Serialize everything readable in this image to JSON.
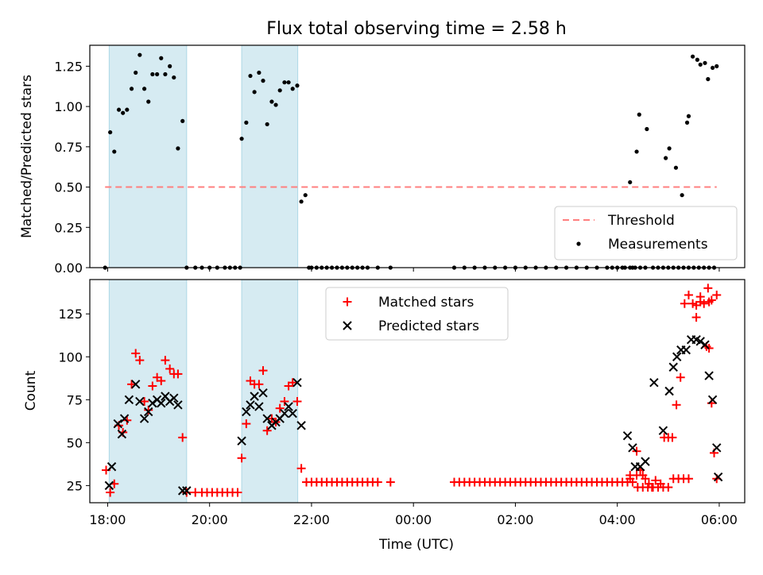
{
  "title": "Flux total observing time = 2.58 h",
  "colors": {
    "band": "#add8e6",
    "threshold": "#ff7f7f",
    "matched": "#ff0000",
    "predicted": "#000000",
    "points": "#000000"
  },
  "chart_data": [
    {
      "type": "scatter",
      "panel": "top",
      "ylabel": "Matched/Predicted stars",
      "xlim": [
        17.65,
        30.5
      ],
      "ylim": [
        0,
        1.38
      ],
      "yticks": [
        0.0,
        0.25,
        0.5,
        0.75,
        1.0,
        1.25
      ],
      "ytick_labels": [
        "0.00",
        "0.25",
        "0.50",
        "0.75",
        "1.00",
        "1.25"
      ],
      "shaded_intervals": [
        [
          18.03,
          19.55
        ],
        [
          20.63,
          21.73
        ]
      ],
      "threshold": {
        "label": "Threshold",
        "value": 0.5,
        "x_range": [
          17.95,
          29.95
        ]
      },
      "legend": {
        "position": "lower right",
        "entries": [
          "Threshold",
          "Measurements"
        ]
      },
      "series": [
        {
          "name": "Measurements",
          "x": [
            17.95,
            18.05,
            18.13,
            18.22,
            18.3,
            18.38,
            18.47,
            18.55,
            18.63,
            18.72,
            18.8,
            18.88,
            18.97,
            19.05,
            19.13,
            19.22,
            19.3,
            19.38,
            19.47,
            19.55,
            19.72,
            19.85,
            20.0,
            20.15,
            20.3,
            20.4,
            20.5,
            20.6,
            20.63,
            20.72,
            20.8,
            20.88,
            20.97,
            21.05,
            21.13,
            21.22,
            21.3,
            21.38,
            21.47,
            21.55,
            21.63,
            21.72,
            21.8,
            21.88,
            21.95,
            22.0,
            22.1,
            22.2,
            22.3,
            22.4,
            22.5,
            22.6,
            22.7,
            22.8,
            22.9,
            23.0,
            23.1,
            23.3,
            23.55,
            24.8,
            25.0,
            25.2,
            25.4,
            25.6,
            25.8,
            26.0,
            26.2,
            26.4,
            26.6,
            26.8,
            27.0,
            27.2,
            27.4,
            27.6,
            27.8,
            27.9,
            28.0,
            28.1,
            28.15,
            28.25,
            28.3,
            28.35,
            28.45,
            28.55,
            28.7,
            28.8,
            28.9,
            29.0,
            29.1,
            29.2,
            29.3,
            29.4,
            29.5,
            29.6,
            29.7,
            29.8,
            29.9,
            28.25,
            28.38,
            28.43,
            28.58,
            28.95,
            29.02,
            29.15,
            29.27,
            29.37,
            29.4,
            29.48,
            29.57,
            29.63,
            29.72,
            29.78,
            29.87,
            29.95
          ],
          "y": [
            0.0,
            0.84,
            0.72,
            0.98,
            0.96,
            0.98,
            1.11,
            1.21,
            1.32,
            1.11,
            1.03,
            1.2,
            1.2,
            1.3,
            1.2,
            1.25,
            1.18,
            0.74,
            0.91,
            0.0,
            0.0,
            0.0,
            0.0,
            0.0,
            0.0,
            0.0,
            0.0,
            0.0,
            0.8,
            0.9,
            1.19,
            1.09,
            1.21,
            1.16,
            0.89,
            1.03,
            1.01,
            1.1,
            1.15,
            1.15,
            1.11,
            1.13,
            0.41,
            0.45,
            0.0,
            0.0,
            0.0,
            0.0,
            0.0,
            0.0,
            0.0,
            0.0,
            0.0,
            0.0,
            0.0,
            0.0,
            0.0,
            0.0,
            0.0,
            0.0,
            0.0,
            0.0,
            0.0,
            0.0,
            0.0,
            0.0,
            0.0,
            0.0,
            0.0,
            0.0,
            0.0,
            0.0,
            0.0,
            0.0,
            0.0,
            0.0,
            0.0,
            0.0,
            0.0,
            0.0,
            0.0,
            0.0,
            0.0,
            0.0,
            0.0,
            0.0,
            0.0,
            0.0,
            0.0,
            0.0,
            0.0,
            0.0,
            0.0,
            0.0,
            0.0,
            0.0,
            0.0,
            0.53,
            0.72,
            0.95,
            0.86,
            0.68,
            0.74,
            0.62,
            0.45,
            0.9,
            0.94,
            1.31,
            1.29,
            1.26,
            1.27,
            1.17,
            1.24,
            1.25
          ]
        }
      ]
    },
    {
      "type": "scatter",
      "panel": "bottom",
      "ylabel": "Count",
      "xlabel": "Time (UTC)",
      "xlim": [
        17.65,
        30.5
      ],
      "ylim": [
        15,
        145
      ],
      "yticks": [
        25,
        50,
        75,
        100,
        125
      ],
      "ytick_labels": [
        "25",
        "50",
        "75",
        "100",
        "125"
      ],
      "xticks": [
        18,
        20,
        22,
        24,
        26,
        28,
        30
      ],
      "xtick_labels": [
        "18:00",
        "20:00",
        "22:00",
        "00:00",
        "02:00",
        "04:00",
        "06:00"
      ],
      "shaded_intervals": [
        [
          18.03,
          19.55
        ],
        [
          20.63,
          21.73
        ]
      ],
      "legend": {
        "position": "upper center",
        "entries": [
          "Matched stars",
          "Predicted stars"
        ]
      },
      "series": [
        {
          "name": "Matched stars",
          "x": [
            17.97,
            18.05,
            18.13,
            18.22,
            18.3,
            18.38,
            18.47,
            18.55,
            18.63,
            18.72,
            18.8,
            18.88,
            18.97,
            19.05,
            19.13,
            19.22,
            19.3,
            19.38,
            19.47,
            19.55,
            19.72,
            19.85,
            19.95,
            20.05,
            20.15,
            20.25,
            20.35,
            20.45,
            20.55,
            20.63,
            20.72,
            20.8,
            20.88,
            20.97,
            21.05,
            21.13,
            21.22,
            21.3,
            21.38,
            21.47,
            21.55,
            21.63,
            21.72,
            21.8,
            21.9,
            22.0,
            22.1,
            22.2,
            22.3,
            22.4,
            22.5,
            22.6,
            22.7,
            22.8,
            22.9,
            23.0,
            23.1,
            23.2,
            23.3,
            23.55,
            24.8,
            24.9,
            25.0,
            25.1,
            25.2,
            25.3,
            25.4,
            25.5,
            25.6,
            25.7,
            25.8,
            25.9,
            26.0,
            26.1,
            26.2,
            26.3,
            26.4,
            26.5,
            26.6,
            26.7,
            26.8,
            26.9,
            27.0,
            27.1,
            27.2,
            27.3,
            27.4,
            27.5,
            27.6,
            27.7,
            27.8,
            27.9,
            28.0,
            28.1,
            28.2,
            28.3,
            28.4,
            28.5,
            28.6,
            28.7,
            28.8,
            28.9,
            29.0,
            29.1,
            29.2,
            29.3,
            29.4,
            29.48,
            29.55,
            29.63,
            29.7,
            29.78,
            29.85,
            29.95,
            28.75,
            28.85,
            28.92,
            29.0,
            29.08,
            29.16,
            29.24,
            29.32,
            29.4
          ],
          "y": [
            34,
            21,
            26,
            60,
            56,
            63,
            84,
            102,
            98,
            74,
            69,
            83,
            88,
            86,
            98,
            93,
            90,
            90,
            53,
            21,
            21,
            21,
            21,
            21,
            21,
            21,
            21,
            21,
            21,
            41,
            61,
            86,
            84,
            84,
            92,
            57,
            64,
            62,
            70,
            74,
            83,
            85,
            74,
            35,
            27,
            27,
            27,
            27,
            27,
            27,
            27,
            27,
            27,
            27,
            27,
            27,
            27,
            27,
            27,
            27,
            27,
            27,
            27,
            27,
            27,
            27,
            27,
            27,
            27,
            27,
            27,
            27,
            27,
            27,
            27,
            27,
            27,
            27,
            27,
            27,
            27,
            27,
            27,
            27,
            27,
            27,
            27,
            27,
            27,
            27,
            27,
            27,
            27,
            27,
            27,
            27,
            24,
            24,
            24,
            24,
            24,
            24,
            24,
            29,
            29,
            29,
            29,
            131,
            123,
            135,
            131,
            140,
            133,
            136,
            28,
            26,
            53,
            53,
            53,
            72,
            88,
            131,
            136
          ],
          "extra_points": [
            [
              29.55,
              130
            ],
            [
              29.8,
              132
            ],
            [
              29.63,
              132
            ],
            [
              29.75,
              106
            ],
            [
              29.8,
              105
            ],
            [
              29.85,
              73
            ],
            [
              29.9,
              44
            ],
            [
              29.95,
              29
            ],
            [
              28.45,
              34
            ],
            [
              28.25,
              29
            ],
            [
              28.38,
              31
            ],
            [
              28.5,
              31
            ],
            [
              28.38,
              45
            ],
            [
              28.25,
              31
            ],
            [
              28.55,
              29
            ],
            [
              28.68,
              24
            ],
            [
              28.62,
              26
            ]
          ]
        },
        {
          "name": "Predicted stars",
          "x": [
            18.03,
            18.08,
            18.2,
            18.28,
            18.33,
            18.42,
            18.55,
            18.63,
            18.72,
            18.8,
            18.88,
            18.97,
            19.05,
            19.13,
            19.22,
            19.3,
            19.38,
            19.47,
            19.55,
            20.63,
            20.72,
            20.8,
            20.88,
            20.97,
            21.05,
            21.13,
            21.22,
            21.3,
            21.38,
            21.47,
            21.55,
            21.63,
            21.72,
            21.8,
            28.2,
            28.3,
            28.35,
            28.45,
            28.55,
            28.72,
            28.9,
            29.02,
            29.1,
            29.17,
            29.25,
            29.35,
            29.45,
            29.55,
            29.63,
            29.72,
            29.8,
            29.87,
            29.95,
            29.98
          ],
          "y": [
            25,
            36,
            61,
            55,
            64,
            75,
            84,
            74,
            64,
            68,
            73,
            75,
            73,
            77,
            74,
            76,
            72,
            22,
            22,
            51,
            68,
            72,
            77,
            71,
            79,
            64,
            60,
            62,
            64,
            67,
            71,
            67,
            85,
            60,
            54,
            47,
            36,
            36,
            39,
            85,
            57,
            80,
            94,
            100,
            104,
            104,
            110,
            110,
            109,
            107,
            89,
            75,
            47,
            30
          ]
        }
      ]
    }
  ]
}
